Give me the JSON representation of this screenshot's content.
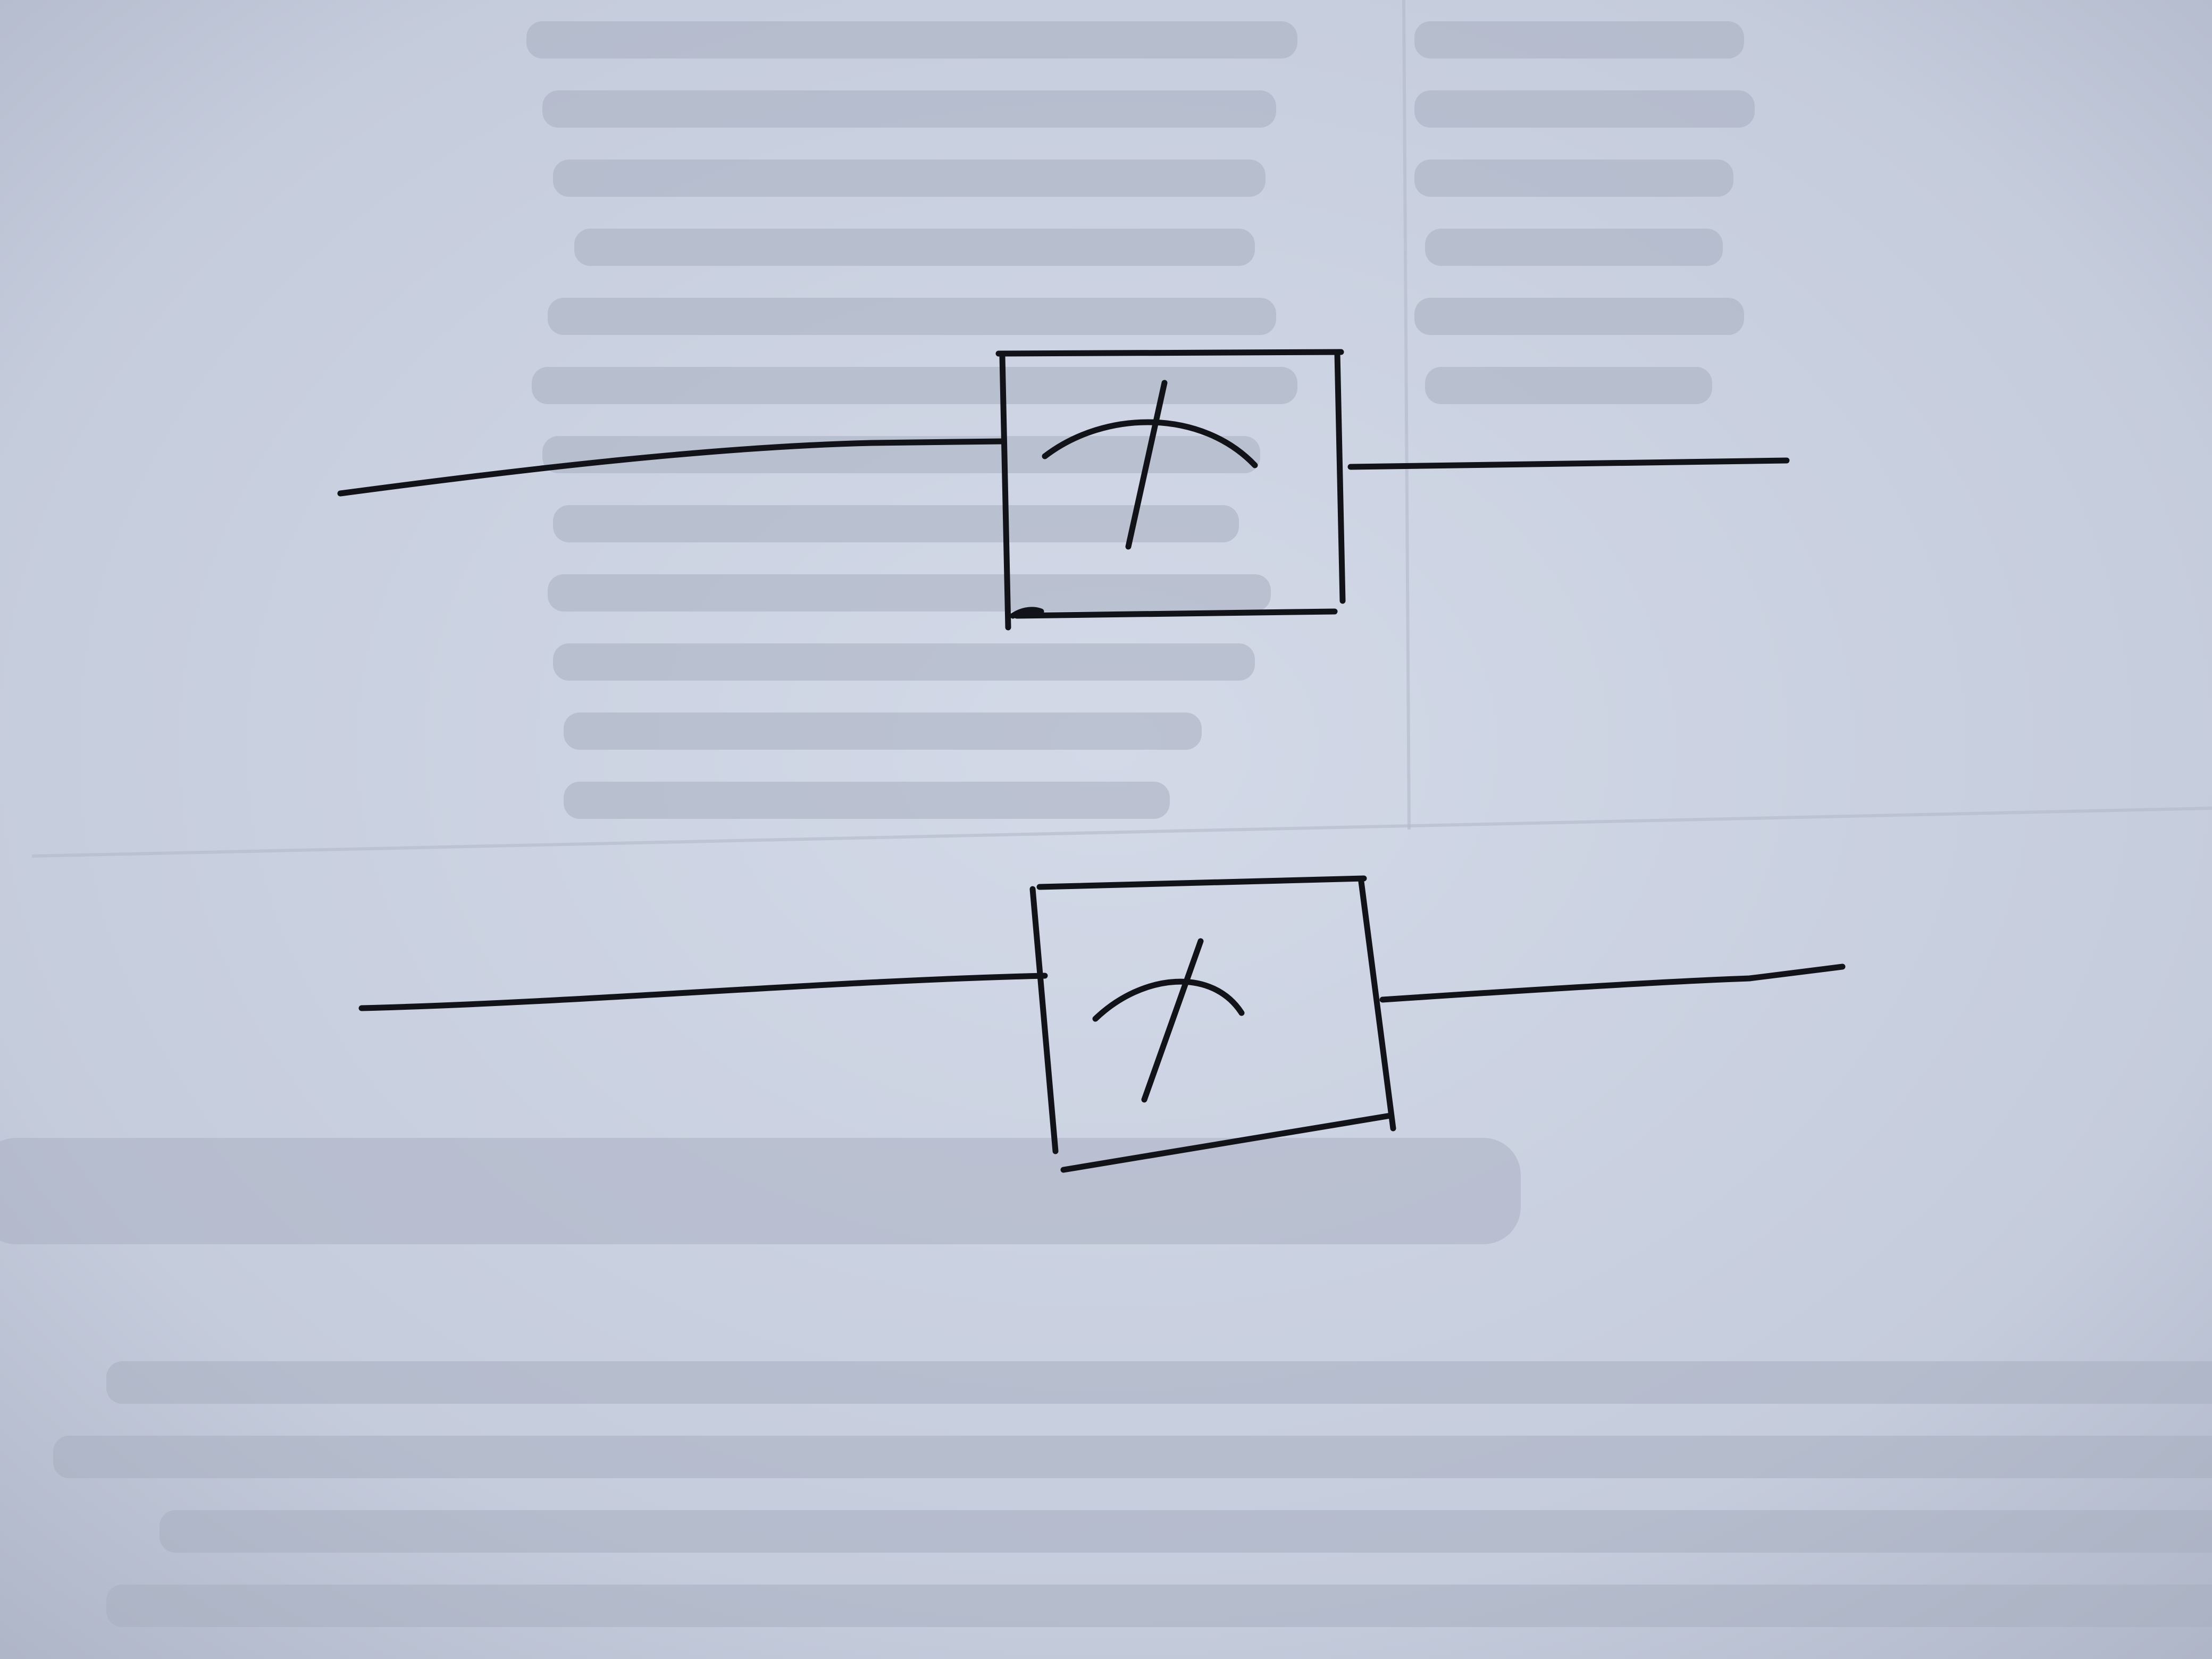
{
  "diagram": {
    "paper_color": "#c9d0e0",
    "ink_color": "#121318",
    "symbols": [
      {
        "type": "meter-box",
        "icon": "meter-gauge-icon"
      },
      {
        "type": "meter-box",
        "icon": "meter-gauge-icon"
      }
    ]
  }
}
